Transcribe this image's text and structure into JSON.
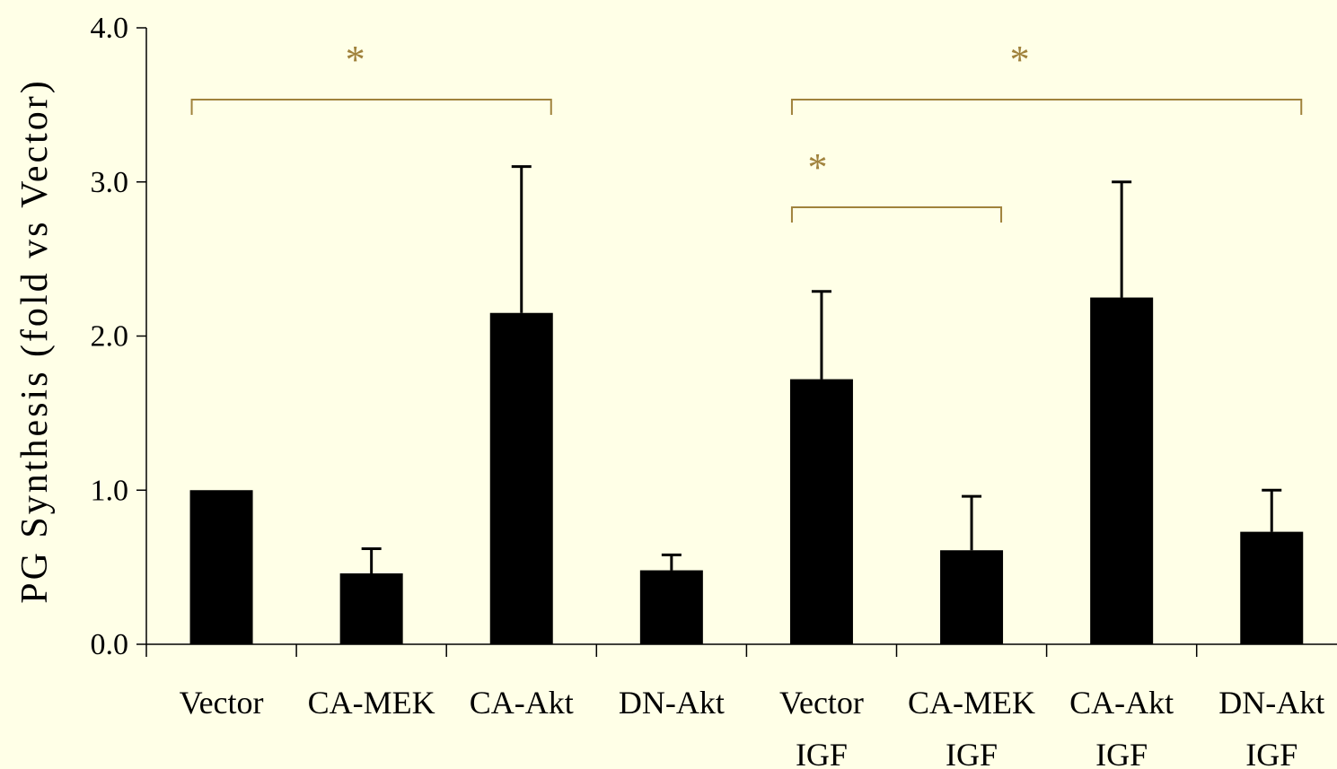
{
  "chart_data": {
    "type": "bar",
    "ylabel": "PG Synthesis (fold vs Vector)",
    "ylim": [
      0,
      4
    ],
    "yticks": [
      "0.0",
      "1.0",
      "2.0",
      "3.0",
      "4.0"
    ],
    "categories": [
      [
        "Vector",
        ""
      ],
      [
        "CA-MEK",
        ""
      ],
      [
        "CA-Akt",
        ""
      ],
      [
        "DN-Akt",
        ""
      ],
      [
        "Vector",
        "IGF"
      ],
      [
        "CA-MEK",
        "IGF"
      ],
      [
        "CA-Akt",
        "IGF"
      ],
      [
        "DN-Akt",
        "IGF"
      ]
    ],
    "values": [
      1.0,
      0.46,
      2.15,
      0.48,
      1.72,
      0.61,
      2.25,
      0.73
    ],
    "errors": [
      0.0,
      0.16,
      0.95,
      0.1,
      0.57,
      0.35,
      0.75,
      0.27
    ],
    "significance": [
      {
        "from": 0,
        "to": 2,
        "label": "*"
      },
      {
        "from": 4,
        "to": 7,
        "label": "*"
      },
      {
        "from": 4,
        "to": 5,
        "label": "*"
      }
    ],
    "colors": {
      "bar": "#000000",
      "bracket": "#A0823C",
      "background": "#FFFFE7"
    },
    "grid": false
  }
}
